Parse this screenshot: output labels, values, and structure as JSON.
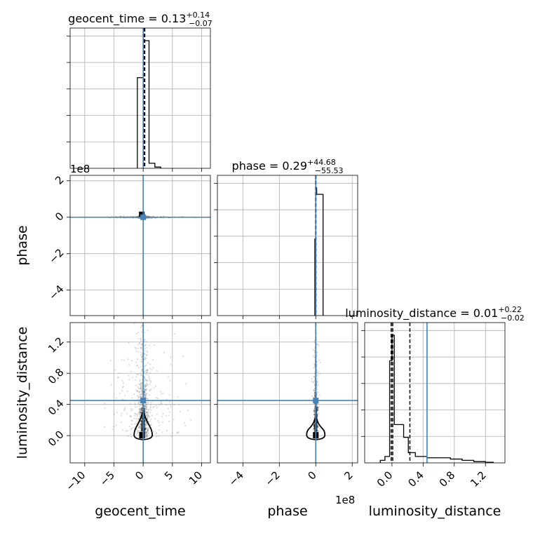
{
  "chart_data": {
    "type": "corner",
    "parameters": [
      "geocent_time",
      "phase",
      "luminosity_distance"
    ],
    "axis_labels": {
      "geocent_time": "geocent_time",
      "phase": "phase",
      "luminosity_distance": "luminosity_distance"
    },
    "titles": {
      "geocent_time": {
        "name": "geocent_time",
        "median": "0.13",
        "plus": "+0.14",
        "minus": "−0.07"
      },
      "phase": {
        "name": "phase",
        "median": "0.29",
        "plus": "+44.68",
        "minus": "−55.53"
      },
      "luminosity_distance": {
        "name": "luminosity_distance",
        "median": "0.01",
        "plus": "+0.22",
        "minus": "−0.02"
      }
    },
    "ranges": {
      "geocent_time": [
        -12.5,
        11.5
      ],
      "phase": [
        -540000000,
        230000000
      ],
      "luminosity_distance": [
        -0.35,
        1.45
      ]
    },
    "ticks": {
      "geocent_time": [
        -10,
        -5,
        0,
        5,
        10
      ],
      "phase": [
        -4,
        -2,
        0,
        2
      ],
      "luminosity_distance": [
        0.0,
        0.4,
        0.8,
        1.2
      ]
    },
    "tick_labels": {
      "geocent_time": [
        "−10",
        "−5",
        "0",
        "5",
        "10"
      ],
      "phase": [
        "−4",
        "−2",
        "0",
        "2"
      ],
      "luminosity_distance": [
        "0.0",
        "0.4",
        "0.8",
        "1.2"
      ]
    },
    "offset_labels": {
      "phase": "1e8"
    },
    "truths": {
      "geocent_time": 0.0,
      "phase": 0.0,
      "luminosity_distance": 0.45
    },
    "quantiles": {
      "geocent_time": [
        0.06,
        0.13,
        0.27
      ],
      "phase": [
        -55.24,
        0.29,
        44.97
      ],
      "luminosity_distance": [
        -0.01,
        0.01,
        0.23
      ]
    },
    "histograms": {
      "geocent_time": {
        "edges": [
          -1.0,
          0.0,
          1.0,
          2.0,
          3.0
        ],
        "counts": [
          0.71,
          1.0,
          0.04,
          0.01
        ]
      },
      "phase": {
        "edges": [
          -5000000,
          0,
          5000000,
          40000000
        ],
        "counts": [
          0.6,
          1.0,
          0.95
        ]
      },
      "luminosity_distance": {
        "edges": [
          -0.15,
          -0.09,
          -0.03,
          0.0,
          0.03,
          0.09,
          0.15,
          0.21,
          0.3,
          0.45,
          0.6,
          0.75,
          0.9,
          1.05,
          1.2,
          1.3
        ],
        "counts": [
          0.02,
          0.05,
          0.8,
          1.0,
          0.3,
          0.3,
          0.2,
          0.08,
          0.05,
          0.04,
          0.04,
          0.03,
          0.02,
          0.01,
          0.005
        ]
      }
    },
    "grid": true,
    "truth_color": "#4682b4",
    "line_color": "#000000",
    "scatter_color": "#808080"
  }
}
